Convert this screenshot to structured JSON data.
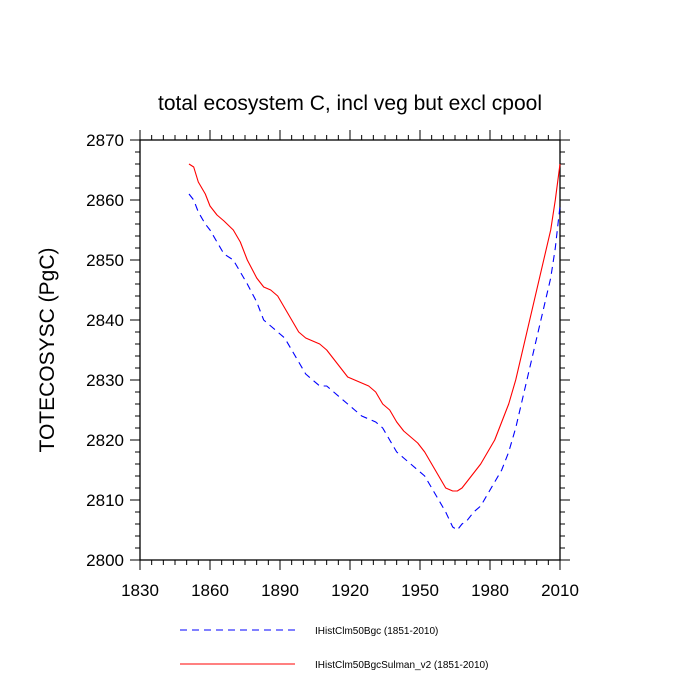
{
  "chart_data": {
    "type": "line",
    "title": "total ecosystem C, incl veg but excl cpool",
    "xlabel": "",
    "ylabel": "TOTECOSYSC  (PgC)",
    "xlim": [
      1830,
      2010
    ],
    "ylim": [
      2800,
      2870
    ],
    "xticks": [
      1830,
      1860,
      1890,
      1920,
      1950,
      1980,
      2010
    ],
    "yticks": [
      2800,
      2810,
      2820,
      2830,
      2840,
      2850,
      2860,
      2870
    ],
    "grid": false,
    "legend_position": "bottom",
    "series": [
      {
        "name": "IHistClm50Bgc (1851-2010)",
        "color": "#0000ff",
        "dash": "dashed",
        "x": [
          1851,
          1853,
          1855,
          1858,
          1860,
          1863,
          1866,
          1870,
          1873,
          1876,
          1880,
          1883,
          1886,
          1889,
          1892,
          1895,
          1898,
          1901,
          1904,
          1907,
          1910,
          1913,
          1916,
          1919,
          1922,
          1925,
          1928,
          1931,
          1934,
          1937,
          1940,
          1943,
          1946,
          1949,
          1952,
          1955,
          1958,
          1961,
          1964,
          1966,
          1968,
          1970,
          1973,
          1976,
          1979,
          1982,
          1985,
          1988,
          1991,
          1994,
          1997,
          2000,
          2003,
          2006,
          2008,
          2010
        ],
        "values": [
          2861,
          2860,
          2858,
          2856,
          2855,
          2853,
          2851,
          2850,
          2848,
          2846,
          2843,
          2840,
          2839,
          2838,
          2837,
          2835,
          2833,
          2831,
          2830,
          2829,
          2829,
          2828,
          2827,
          2826,
          2825,
          2824,
          2823.5,
          2823,
          2822,
          2820,
          2818,
          2817,
          2816,
          2815,
          2814,
          2812,
          2810,
          2808,
          2805.5,
          2805,
          2806,
          2806.5,
          2808,
          2809,
          2811,
          2813,
          2815,
          2818,
          2822,
          2827,
          2832,
          2837,
          2842,
          2847,
          2852,
          2859
        ]
      },
      {
        "name": "IHistClm50BgcSulman_v2 (1851-2010)",
        "color": "#ff0000",
        "dash": "solid",
        "x": [
          1851,
          1853,
          1855,
          1858,
          1860,
          1863,
          1866,
          1870,
          1873,
          1876,
          1880,
          1883,
          1886,
          1889,
          1892,
          1895,
          1898,
          1901,
          1904,
          1907,
          1910,
          1913,
          1916,
          1919,
          1922,
          1925,
          1928,
          1931,
          1934,
          1937,
          1940,
          1943,
          1946,
          1949,
          1952,
          1955,
          1958,
          1961,
          1964,
          1966,
          1968,
          1970,
          1973,
          1976,
          1979,
          1982,
          1985,
          1988,
          1991,
          1994,
          1997,
          2000,
          2003,
          2006,
          2008,
          2010
        ],
        "values": [
          2866,
          2865.5,
          2863,
          2861,
          2859,
          2857.5,
          2856.5,
          2855,
          2853,
          2850,
          2847,
          2845.5,
          2845,
          2844,
          2842,
          2840,
          2838,
          2837,
          2836.5,
          2836,
          2835,
          2833.5,
          2832,
          2830.5,
          2830,
          2829.5,
          2829,
          2828,
          2826,
          2825,
          2823,
          2821.5,
          2820.5,
          2819.5,
          2818,
          2816,
          2814,
          2812,
          2811.5,
          2811.5,
          2812,
          2813,
          2814.5,
          2816,
          2818,
          2820,
          2823,
          2826,
          2830,
          2835,
          2840,
          2845,
          2850,
          2855,
          2860,
          2866
        ]
      }
    ]
  }
}
